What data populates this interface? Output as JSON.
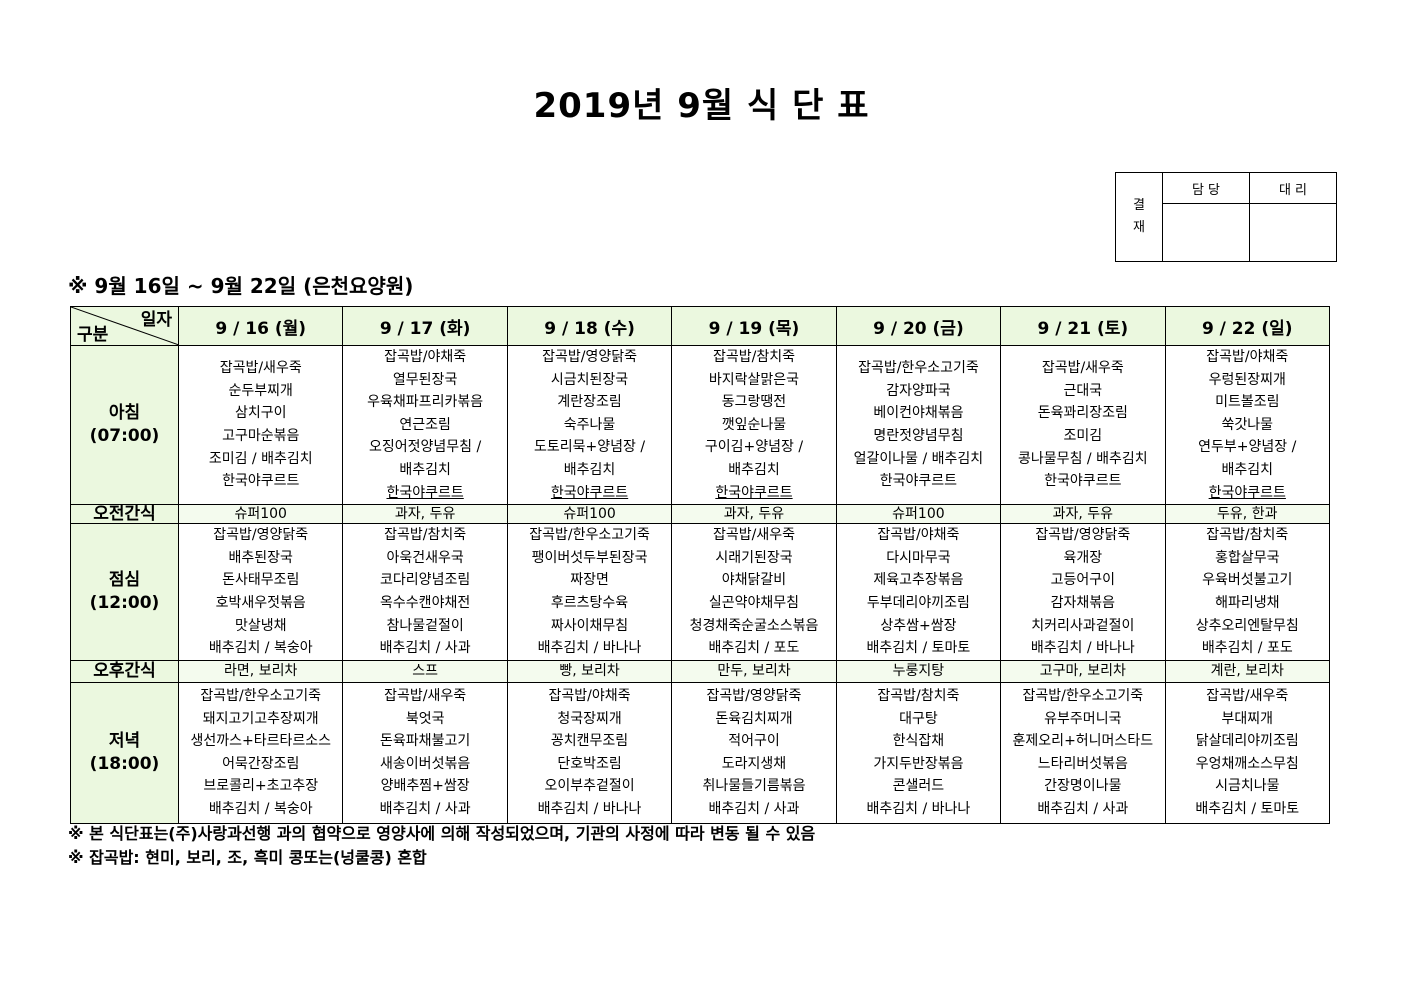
{
  "title": "2019년 9월 식 단 표",
  "approval": {
    "label": "결\n재",
    "cols": [
      "담 당",
      "대 리"
    ]
  },
  "subtitle": "※ 9월 16일 ~ 9월 22일 (은천요양원)",
  "table": {
    "corner_top": "일자",
    "corner_bottom": "구분",
    "days": [
      "9 / 16 (월)",
      "9 / 17 (화)",
      "9 / 18 (수)",
      "9 / 19 (목)",
      "9 / 20 (금)",
      "9 / 21 (토)",
      "9 / 22 (일)"
    ],
    "rows": [
      {
        "label": "아침",
        "time": "(07:00)",
        "type": "meal",
        "cells": [
          [
            "잡곡밥/새우죽",
            "순두부찌개",
            "삼치구이",
            "고구마순볶음",
            "조미김 / 배추김치",
            "한국야쿠르트"
          ],
          [
            "잡곡밥/야채죽",
            "열무된장국",
            "우육채파프리카볶음",
            "연근조림",
            "오징어젓양념무침 /",
            "배추김치",
            "한국야쿠르트"
          ],
          [
            "잡곡밥/영양닭죽",
            "시금치된장국",
            "계란장조림",
            "숙주나물",
            "도토리묵+양념장 /",
            "배추김치",
            "한국야쿠르트"
          ],
          [
            "잡곡밥/참치죽",
            "바지락살맑은국",
            "동그랑땡전",
            "깻잎순나물",
            "구이김+양념장 /",
            "배추김치",
            "한국야쿠르트"
          ],
          [
            "잡곡밥/한우소고기죽",
            "감자양파국",
            "베이컨야채볶음",
            "명란젓양념무침",
            "얼갈이나물 / 배추김치",
            "한국야쿠르트"
          ],
          [
            "잡곡밥/새우죽",
            "근대국",
            "돈육꽈리장조림",
            "조미김",
            "콩나물무침 / 배추김치",
            "한국야쿠르트"
          ],
          [
            "잡곡밥/야채죽",
            "우렁된장찌개",
            "미트볼조림",
            "쑥갓나물",
            "연두부+양념장 /",
            "배추김치",
            "한국야쿠르트"
          ]
        ]
      },
      {
        "label": "오전간식",
        "type": "snack",
        "cells": [
          "슈퍼100",
          "과자, 두유",
          "슈퍼100",
          "과자, 두유",
          "슈퍼100",
          "과자, 두유",
          "두유, 한과"
        ]
      },
      {
        "label": "점심",
        "time": "(12:00)",
        "type": "meal",
        "cells": [
          [
            "잡곡밥/영양닭죽",
            "배추된장국",
            "돈사태무조림",
            "호박새우젓볶음",
            "맛살냉채",
            "배추김치 / 복숭아"
          ],
          [
            "잡곡밥/참치죽",
            "아욱건새우국",
            "코다리양념조림",
            "옥수수캔야채전",
            "참나물겉절이",
            "배추김치 / 사과"
          ],
          [
            "잡곡밥/한우소고기죽",
            "팽이버섯두부된장국",
            "짜장면",
            "후르츠탕수육",
            "짜사이채무침",
            "배추김치 / 바나나"
          ],
          [
            "잡곡밥/새우죽",
            "시래기된장국",
            "야채닭갈비",
            "실곤약야채무침",
            "청경채죽순굴소스볶음",
            "배추김치 / 포도"
          ],
          [
            "잡곡밥/야채죽",
            "다시마무국",
            "제육고추장볶음",
            "두부데리야끼조림",
            "상추쌈+쌈장",
            "배추김치 / 토마토"
          ],
          [
            "잡곡밥/영양닭죽",
            "육개장",
            "고등어구이",
            "감자채볶음",
            "치커리사과겉절이",
            "배추김치 / 바나나"
          ],
          [
            "잡곡밥/참치죽",
            "홍합살무국",
            "우육버섯불고기",
            "해파리냉채",
            "상추오리엔탈무침",
            "배추김치 / 포도"
          ]
        ]
      },
      {
        "label": "오후간식",
        "type": "snack",
        "cells": [
          "라면,   보리차",
          "스프",
          "빵, 보리차",
          "만두, 보리차",
          "누룽지탕",
          "고구마, 보리차",
          "계란, 보리차"
        ]
      },
      {
        "label": "저녁",
        "time": "(18:00)",
        "type": "meal",
        "cells": [
          [
            "잡곡밥/한우소고기죽",
            "돼지고기고추장찌개",
            "생선까스+타르타르소스",
            "어묵간장조림",
            "브로콜리+초고추장",
            "배추김치 / 복숭아"
          ],
          [
            "잡곡밥/새우죽",
            "북엇국",
            "돈육파채불고기",
            "새송이버섯볶음",
            "양배추찜+쌈장",
            "배추김치 / 사과"
          ],
          [
            "잡곡밥/야채죽",
            "청국장찌개",
            "꽁치캔무조림",
            "단호박조림",
            "오이부추겉절이",
            "배추김치 / 바나나"
          ],
          [
            "잡곡밥/영양닭죽",
            "돈육김치찌개",
            "적어구이",
            "도라지생채",
            "취나물들기름볶음",
            "배추김치 / 사과"
          ],
          [
            "잡곡밥/참치죽",
            "대구탕",
            "한식잡채",
            "가지두반장볶음",
            "콘샐러드",
            "배추김치 / 바나나"
          ],
          [
            "잡곡밥/한우소고기죽",
            "유부주머니국",
            "훈제오리+허니머스타드",
            "느타리버섯볶음",
            "간장명이나물",
            "배추김치 / 사과"
          ],
          [
            "잡곡밥/새우죽",
            "부대찌개",
            "닭살데리야끼조림",
            "우엉채깨소스무침",
            "시금치나물",
            "배추김치 / 토마토"
          ]
        ]
      }
    ]
  },
  "notes": [
    "※ 본 식단표는(주)사랑과선행 과의 협약으로 영양사에 의해 작성되었으며, 기관의 사정에 따라 변동 될 수 있음",
    "※ 잡곡밥: 현미, 보리, 조, 흑미 콩또는(넝쿨콩) 혼합"
  ],
  "colors": {
    "header_bg": "#ebf8df",
    "snack_bg": "#f4fbee"
  }
}
